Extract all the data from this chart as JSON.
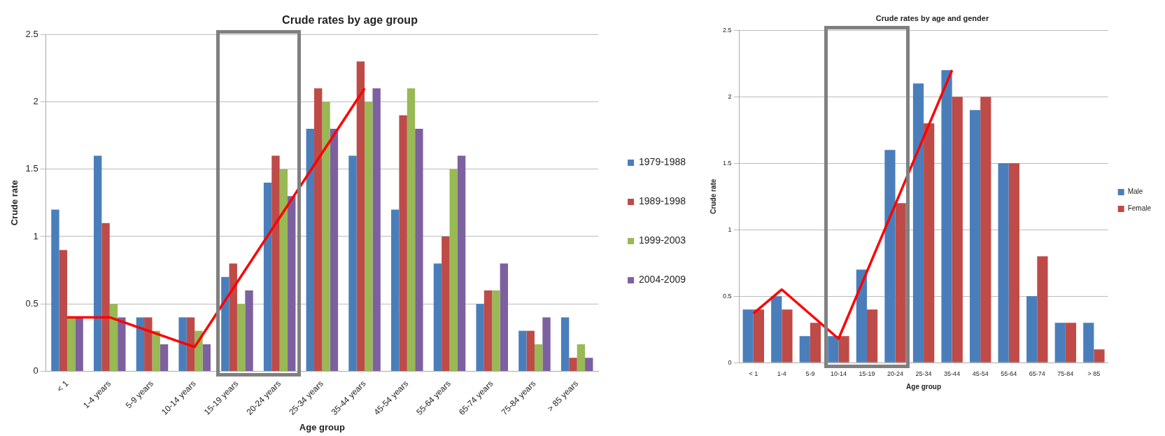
{
  "chart_data": [
    {
      "type": "bar",
      "title": "Crude rates by age group",
      "xlabel": "Age group",
      "ylabel": "Crude rate",
      "categories": [
        "< 1",
        "1-4 years",
        "5-9 years",
        "10-14 years",
        "15-19 years",
        "20-24 years",
        "25-34 years",
        "35-44 years",
        "45-54 years",
        "55-64 years",
        "65-74 years",
        "75-84 years",
        "> 85 years"
      ],
      "series": [
        {
          "name": "1979-1988",
          "color": "#4a7ebb",
          "values": [
            1.2,
            1.6,
            0.4,
            0.4,
            0.7,
            1.4,
            1.8,
            1.6,
            1.2,
            0.8,
            0.5,
            0.3,
            0.4
          ]
        },
        {
          "name": "1989-1998",
          "color": "#be4b48",
          "values": [
            0.9,
            1.1,
            0.4,
            0.4,
            0.8,
            1.6,
            2.1,
            2.3,
            1.9,
            1.0,
            0.6,
            0.3,
            0.1
          ]
        },
        {
          "name": "1999-2003",
          "color": "#98b954",
          "values": [
            0.4,
            0.5,
            0.3,
            0.3,
            0.5,
            1.5,
            2.0,
            2.0,
            2.1,
            1.5,
            0.6,
            0.2,
            0.2
          ]
        },
        {
          "name": "2004-2009",
          "color": "#7d60a0",
          "values": [
            0.4,
            0.4,
            0.2,
            0.2,
            0.6,
            1.3,
            1.8,
            2.1,
            1.8,
            1.6,
            0.8,
            0.4,
            0.1
          ]
        },
        {
          "type": "line",
          "color": "#ff0000",
          "values": [
            0.4,
            0.4,
            null,
            0.18,
            null,
            null,
            null,
            2.1,
            null,
            null,
            null,
            null,
            null
          ]
        }
      ],
      "ylim": [
        0,
        2.5
      ],
      "yticks": [
        0,
        0.5,
        1,
        1.5,
        2,
        2.5
      ],
      "grid": "y",
      "legend": "right",
      "marker": "none"
    },
    {
      "type": "bar",
      "title": "Crude rates by age and gender",
      "xlabel": "Age group",
      "ylabel": "Crude rate",
      "categories": [
        "< 1",
        "1-4",
        "5-9",
        "10-14",
        "15-19",
        "20-24",
        "25-34",
        "35-44",
        "45-54",
        "55-64",
        "65-74",
        "75-84",
        "> 85"
      ],
      "series": [
        {
          "name": "Male",
          "color": "#4a7ebb",
          "values": [
            0.4,
            0.5,
            0.2,
            0.2,
            0.7,
            1.6,
            2.1,
            2.2,
            1.9,
            1.5,
            0.5,
            0.3,
            0.3
          ]
        },
        {
          "name": "Female",
          "color": "#be4b48",
          "values": [
            0.4,
            0.4,
            0.3,
            0.2,
            0.4,
            1.2,
            1.8,
            2.0,
            2.0,
            1.5,
            0.8,
            0.3,
            0.1
          ]
        },
        {
          "type": "line",
          "color": "#ff0000",
          "values": [
            0.37,
            0.55,
            null,
            0.18,
            null,
            null,
            null,
            2.2,
            null,
            null,
            null,
            null,
            null
          ]
        }
      ],
      "ylim": [
        0,
        2.5
      ],
      "yticks": [
        0,
        0.5,
        1,
        1.5,
        2,
        2.5
      ],
      "grid": "y",
      "legend": "right",
      "marker": "none"
    }
  ]
}
